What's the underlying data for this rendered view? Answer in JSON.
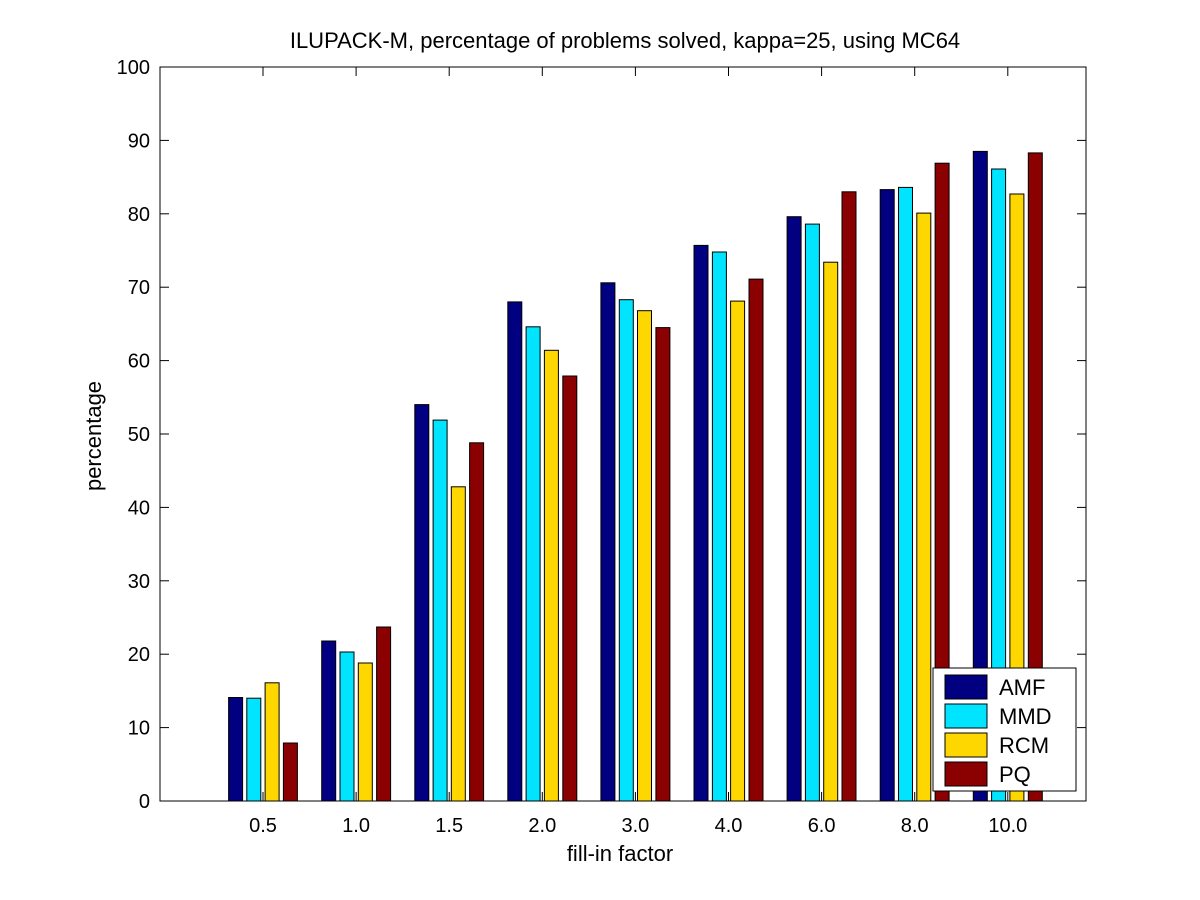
{
  "chart_data": {
    "type": "bar",
    "title": "ILUPACK-M, percentage of problems solved, kappa=25, using MC64",
    "xlabel": "fill-in factor",
    "ylabel": "percentage",
    "ylim": [
      0,
      100
    ],
    "yticks": [
      "0",
      "10",
      "20",
      "30",
      "40",
      "50",
      "60",
      "70",
      "80",
      "90",
      "100"
    ],
    "categories": [
      "0.5",
      "1.0",
      "1.5",
      "2.0",
      "3.0",
      "4.0",
      "6.0",
      "8.0",
      "10.0"
    ],
    "series": [
      {
        "name": "AMF",
        "color": "#000080",
        "values": [
          14.1,
          21.8,
          54.0,
          68.0,
          70.6,
          75.7,
          79.6,
          83.3,
          88.5
        ]
      },
      {
        "name": "MMD",
        "color": "#00e4ff",
        "values": [
          14.0,
          20.3,
          51.9,
          64.6,
          68.3,
          74.8,
          78.6,
          83.6,
          86.1
        ]
      },
      {
        "name": "RCM",
        "color": "#ffd700",
        "values": [
          16.1,
          18.8,
          42.8,
          61.4,
          66.8,
          68.1,
          73.4,
          80.1,
          82.7
        ]
      },
      {
        "name": "PQ",
        "color": "#8b0000",
        "values": [
          7.9,
          23.7,
          48.8,
          57.9,
          64.5,
          71.1,
          83.0,
          86.9,
          88.3
        ]
      }
    ],
    "grid": false,
    "legend_position": "bottom-right"
  }
}
